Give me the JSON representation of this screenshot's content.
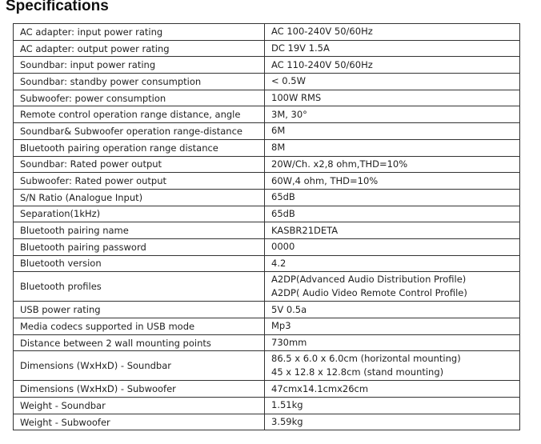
{
  "header": {
    "title": "Specifications"
  },
  "table": {
    "rows": [
      [
        "AC adapter: input power rating",
        [
          "AC 100-240V 50/60Hz"
        ]
      ],
      [
        "AC adapter: output power rating",
        [
          "DC 19V 1.5A"
        ]
      ],
      [
        "Soundbar: input power rating",
        [
          "AC 110-240V 50/60Hz"
        ]
      ],
      [
        "Soundbar: standby power consumption",
        [
          "< 0.5W"
        ]
      ],
      [
        "Subwoofer: power consumption",
        [
          "100W RMS"
        ]
      ],
      [
        "Remote control operation range distance, angle",
        [
          "3M, 30°"
        ]
      ],
      [
        "Soundbar& Subwoofer operation range-distance",
        [
          "6M"
        ]
      ],
      [
        "Bluetooth pairing operation range distance",
        [
          "8M"
        ]
      ],
      [
        "Soundbar: Rated power output",
        [
          "20W/Ch. x2,8 ohm,THD=10%"
        ]
      ],
      [
        "Subwoofer: Rated power output",
        [
          "60W,4 ohm, THD=10%"
        ]
      ],
      [
        "S/N Ratio (Analogue Input)",
        [
          "65dB"
        ]
      ],
      [
        "Separation(1kHz)",
        [
          "65dB"
        ]
      ],
      [
        "Bluetooth pairing name",
        [
          "KASBR21DETA"
        ]
      ],
      [
        "Bluetooth pairing password",
        [
          "0000"
        ]
      ],
      [
        "Bluetooth version",
        [
          "4.2"
        ]
      ],
      [
        "Bluetooth profiles",
        [
          "A2DP(Advanced Audio Distribution Profile)",
          "A2DP( Audio Video Remote Control Profile)"
        ]
      ],
      [
        "USB power rating",
        [
          "5V 0.5a"
        ]
      ],
      [
        "Media codecs supported in USB mode",
        [
          "Mp3"
        ]
      ],
      [
        "Distance between 2 wall mounting points",
        [
          "730mm"
        ]
      ],
      [
        "Dimensions (WxHxD) - Soundbar",
        [
          "86.5 x 6.0 x 6.0cm (horizontal mounting)",
          "45 x 12.8 x 12.8cm (stand mounting)"
        ]
      ],
      [
        "Dimensions (WxHxD) - Subwoofer",
        [
          "47cmx14.1cmx26cm"
        ]
      ],
      [
        "Weight - Soundbar",
        [
          "1.51kg"
        ]
      ],
      [
        "Weight - Subwoofer",
        [
          "3.59kg"
        ]
      ]
    ]
  }
}
